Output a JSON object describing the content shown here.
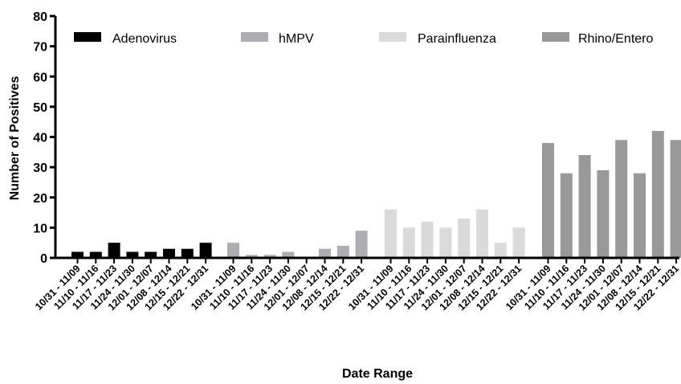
{
  "chart_data": {
    "type": "bar",
    "xlabel": "Date Range",
    "ylabel": "Number of Positives",
    "ylim": [
      0,
      80
    ],
    "yticks": [
      0,
      10,
      20,
      30,
      40,
      50,
      60,
      70,
      80
    ],
    "categories": [
      "10/31 - 11/09",
      "11/10 - 11/16",
      "11/17 - 11/23",
      "11/24 - 11/30",
      "12/01 - 12/07",
      "12/08 - 12/14",
      "12/15 - 12/21",
      "12/22 - 12/31"
    ],
    "legend_position": "top",
    "series": [
      {
        "name": "Adenovirus",
        "color": "#000000",
        "values": [
          2,
          2,
          5,
          2,
          2,
          3,
          3,
          5
        ]
      },
      {
        "name": "hMPV",
        "color": "#aeaeb2",
        "values": [
          5,
          1,
          1,
          2,
          0,
          3,
          4,
          9
        ]
      },
      {
        "name": "Parainfluenza",
        "color": "#dadada",
        "values": [
          16,
          10,
          12,
          10,
          13,
          16,
          5,
          10
        ]
      },
      {
        "name": "Rhino/Entero",
        "color": "#999999",
        "values": [
          38,
          28,
          34,
          29,
          39,
          28,
          42,
          39
        ]
      }
    ]
  }
}
